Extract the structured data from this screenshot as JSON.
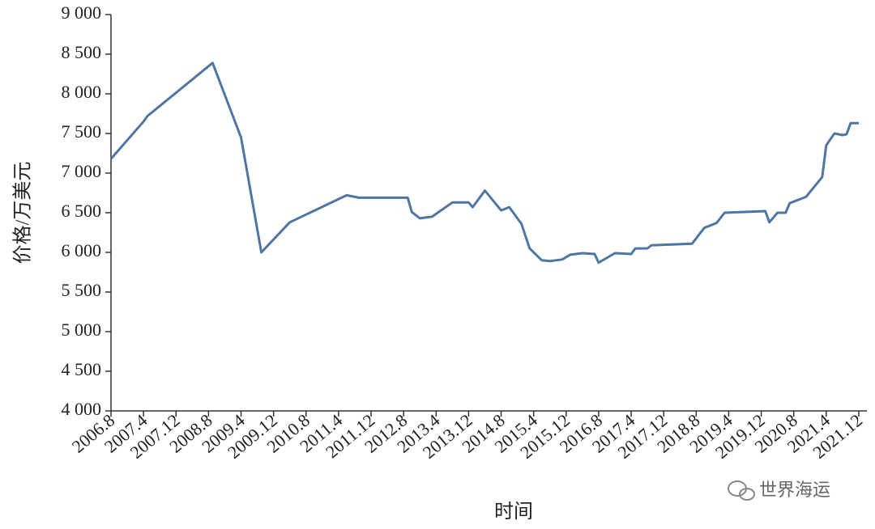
{
  "chart_data": {
    "type": "line",
    "y_label": "价格/万美元",
    "x_label": "时间",
    "watermark": "世界海运",
    "color": "#4f76a3",
    "x": [
      "2006-08",
      "2007-04",
      "2007-05",
      "2008-09",
      "2009-04",
      "2009-09",
      "2010-04",
      "2011-06",
      "2011-09",
      "2012-09",
      "2012-10",
      "2012-12",
      "2013-03",
      "2013-08",
      "2013-12",
      "2014-01",
      "2014-04",
      "2014-08",
      "2014-10",
      "2015-01",
      "2015-03",
      "2015-06",
      "2015-08",
      "2015-11",
      "2016-01",
      "2016-04",
      "2016-07",
      "2016-08",
      "2016-12",
      "2017-04",
      "2017-05",
      "2017-08",
      "2017-09",
      "2018-07",
      "2018-10",
      "2018-12",
      "2019-01",
      "2019-03",
      "2020-01",
      "2020-02",
      "2020-04",
      "2020-06",
      "2020-07",
      "2020-11",
      "2021-03",
      "2021-04",
      "2021-06",
      "2021-08",
      "2021-09",
      "2021-10",
      "2021-12"
    ],
    "values": [
      7180,
      7650,
      7720,
      8390,
      7450,
      6000,
      6380,
      6720,
      6690,
      6690,
      6510,
      6430,
      6450,
      6630,
      6630,
      6570,
      6780,
      6530,
      6570,
      6360,
      6050,
      5900,
      5890,
      5910,
      5970,
      5990,
      5980,
      5870,
      5990,
      5980,
      6050,
      6050,
      6090,
      6110,
      6310,
      6350,
      6370,
      6500,
      6520,
      6380,
      6500,
      6500,
      6620,
      6700,
      6950,
      7350,
      7500,
      7480,
      7490,
      7630,
      7630
    ],
    "xlim": [
      "2006-08",
      "2022-02"
    ],
    "xticks": [
      {
        "value": "2006-08",
        "label": "2006.8"
      },
      {
        "value": "2007-04",
        "label": "2007.4"
      },
      {
        "value": "2007-12",
        "label": "2007.12"
      },
      {
        "value": "2008-08",
        "label": "2008.8"
      },
      {
        "value": "2009-04",
        "label": "2009.4"
      },
      {
        "value": "2009-12",
        "label": "2009.12"
      },
      {
        "value": "2010-08",
        "label": "2010.8"
      },
      {
        "value": "2011-04",
        "label": "2011.4"
      },
      {
        "value": "2011-12",
        "label": "2011.12"
      },
      {
        "value": "2012-08",
        "label": "2012.8"
      },
      {
        "value": "2013-04",
        "label": "2013.4"
      },
      {
        "value": "2013-12",
        "label": "2013.12"
      },
      {
        "value": "2014-08",
        "label": "2014.8"
      },
      {
        "value": "2015-04",
        "label": "2015.4"
      },
      {
        "value": "2015-12",
        "label": "2015.12"
      },
      {
        "value": "2016-08",
        "label": "2016.8"
      },
      {
        "value": "2017-04",
        "label": "2017.4"
      },
      {
        "value": "2017-12",
        "label": "2017.12"
      },
      {
        "value": "2018-08",
        "label": "2018.8"
      },
      {
        "value": "2019-04",
        "label": "2019.4"
      },
      {
        "value": "2019-12",
        "label": "2019.12"
      },
      {
        "value": "2020-08",
        "label": "2020.8"
      },
      {
        "value": "2021-04",
        "label": "2021.4"
      },
      {
        "value": "2021-12",
        "label": "2021.12"
      }
    ],
    "ylim": [
      4000,
      9000
    ],
    "yticks": [
      {
        "value": 4000,
        "label": "4 000"
      },
      {
        "value": 4500,
        "label": "4 500"
      },
      {
        "value": 5000,
        "label": "5 000"
      },
      {
        "value": 5500,
        "label": "5 500"
      },
      {
        "value": 6000,
        "label": "6 000"
      },
      {
        "value": 6500,
        "label": "6 500"
      },
      {
        "value": 7000,
        "label": "7 000"
      },
      {
        "value": 7500,
        "label": "7 500"
      },
      {
        "value": 8000,
        "label": "8 000"
      },
      {
        "value": 8500,
        "label": "8 500"
      },
      {
        "value": 9000,
        "label": "9 000"
      }
    ],
    "grid": false
  }
}
